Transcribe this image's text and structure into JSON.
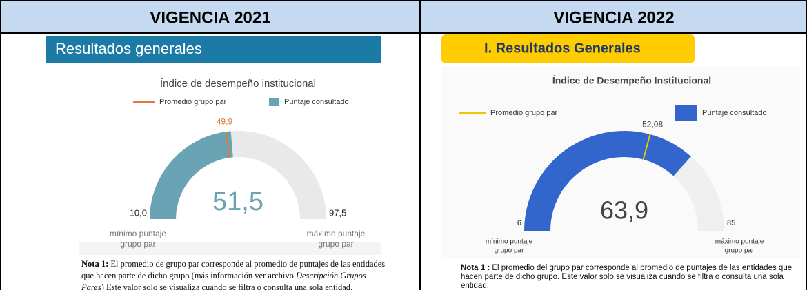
{
  "table": {
    "headers": [
      "VIGENCIA 2021",
      "VIGENCIA 2022"
    ]
  },
  "chart_data": [
    {
      "type": "gauge",
      "section_title": "Resultados generales",
      "title": "Índice de desempeño institucional",
      "series": [
        {
          "name": "Promedio grupo par",
          "color": "#e07b39",
          "values": [
            49.9
          ],
          "value_labels": [
            "49,9"
          ]
        },
        {
          "name": "Puntaje consultado",
          "color": "#6aa3b4",
          "values": [
            51.5
          ],
          "value_labels": [
            "51,5"
          ]
        }
      ],
      "ylim": [
        10,
        97.5
      ],
      "yticks": [
        {
          "value": 10,
          "label": "10,0"
        },
        {
          "value": 97.5,
          "label": "97,5"
        }
      ],
      "tick_captions": [
        [
          "mínimo puntaje",
          "grupo par"
        ],
        [
          "máximo puntaje",
          "grupo par"
        ]
      ],
      "note_label": "Nota 1:",
      "note_parts": [
        "El promedio de grupo par corresponde al promedio de puntajes de las entidades que hacen parte de dicho grupo (más información ver archivo ",
        "Descripción Grupos Pares",
        ") Este valor solo se visualiza cuando se filtra o consulta una sola entidad."
      ]
    },
    {
      "type": "gauge",
      "section_title": "I. Resultados Generales",
      "title": "Índice de Desempeño Institucional",
      "series": [
        {
          "name": "Promedio grupo par",
          "color": "#f2c500",
          "values": [
            52.08
          ],
          "value_labels": [
            "52,08"
          ]
        },
        {
          "name": "Puntaje consultado",
          "color": "#3366cc",
          "values": [
            63.9
          ],
          "value_labels": [
            "63,9"
          ]
        }
      ],
      "ylim": [
        6,
        85
      ],
      "yticks": [
        6,
        85
      ],
      "tick_captions": [
        [
          "mínimo puntaje",
          "grupo par"
        ],
        [
          "máximo puntaje",
          "grupo par"
        ]
      ],
      "note_label": "Nota 1 :",
      "note_parts": [
        "El promedio del grupo par corresponde al promedio de puntajes de las entidades que hacen parte de dicho grupo.  Este valor solo se visualiza cuando se filtra o consulta una sola entidad."
      ]
    }
  ]
}
